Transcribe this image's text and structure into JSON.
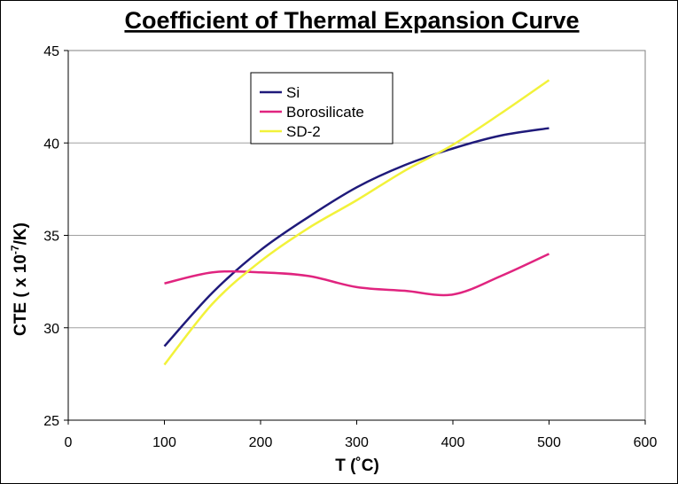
{
  "chart_data": {
    "type": "line",
    "title": "Coefficient of Thermal Expansion Curve",
    "xlabel": "T (˚C)",
    "ylabel": {
      "main": "CTE ( x 10",
      "sup": "-7",
      "tail": "/K)"
    },
    "xlim": [
      0,
      600
    ],
    "ylim": [
      25,
      45
    ],
    "xticks": [
      0,
      100,
      200,
      300,
      400,
      500,
      600
    ],
    "yticks": [
      25,
      30,
      35,
      40,
      45
    ],
    "grid": "horizontal",
    "legend_position": "top-center",
    "series": [
      {
        "name": "Si",
        "color": "#1f1a7a",
        "x": [
          100,
          150,
          200,
          250,
          300,
          350,
          400,
          450,
          500
        ],
        "y": [
          29.0,
          31.9,
          34.2,
          36.0,
          37.6,
          38.8,
          39.7,
          40.4,
          40.8
        ]
      },
      {
        "name": "Borosilicate",
        "color": "#e0247f",
        "x": [
          100,
          150,
          200,
          250,
          300,
          350,
          400,
          450,
          500
        ],
        "y": [
          32.4,
          33.0,
          33.0,
          32.8,
          32.2,
          32.0,
          31.8,
          32.8,
          34.0
        ]
      },
      {
        "name": "SD-2",
        "color": "#f2f23a",
        "x": [
          100,
          150,
          200,
          250,
          300,
          350,
          400,
          450,
          500
        ],
        "y": [
          28.0,
          31.3,
          33.6,
          35.4,
          36.9,
          38.5,
          39.9,
          41.6,
          43.4
        ]
      }
    ]
  }
}
